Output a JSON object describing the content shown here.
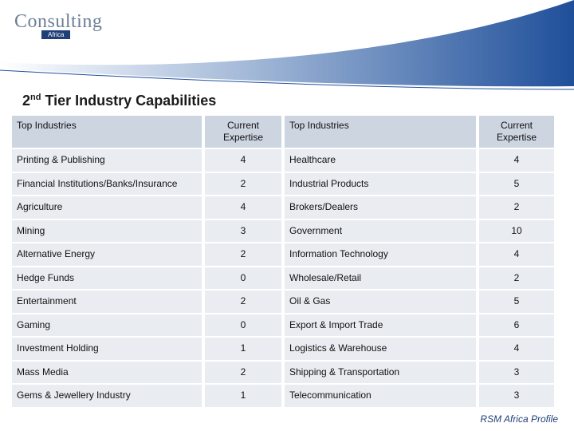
{
  "logo": {
    "name": "Consulting",
    "sub": "Africa"
  },
  "title": {
    "number": "2",
    "suffix": "nd",
    "text": "Tier Industry Capabilities"
  },
  "table": {
    "headers": [
      "Top Industries",
      "Current Expertise",
      "Top Industries",
      "Current Expertise"
    ],
    "rows": [
      [
        "Printing & Publishing",
        4,
        "Healthcare",
        4
      ],
      [
        "Financial Institutions/Banks/Insurance",
        2,
        "Industrial Products",
        5
      ],
      [
        "Agriculture",
        4,
        "Brokers/Dealers",
        2
      ],
      [
        "Mining",
        3,
        "Government",
        10
      ],
      [
        "Alternative Energy",
        2,
        "Information Technology",
        4
      ],
      [
        "Hedge Funds",
        0,
        "Wholesale/Retail",
        2
      ],
      [
        "Entertainment",
        2,
        "Oil & Gas",
        5
      ],
      [
        "Gaming",
        0,
        "Export & Import Trade",
        6
      ],
      [
        "Investment Holding",
        1,
        "Logistics & Warehouse",
        4
      ],
      [
        "Mass Media",
        2,
        "Shipping & Transportation",
        3
      ],
      [
        "Gems & Jewellery Industry",
        1,
        "Telecommunication",
        3
      ]
    ]
  },
  "footer": "RSM Africa Profile"
}
